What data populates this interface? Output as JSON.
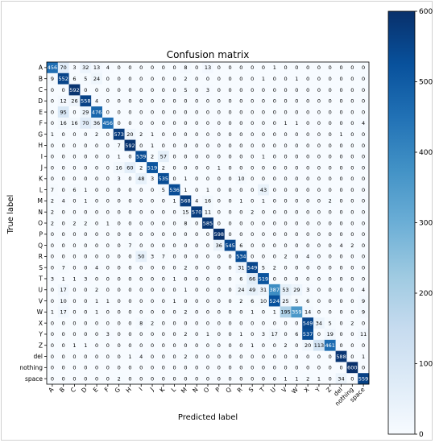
{
  "chart_data": {
    "type": "heatmap",
    "title": "Confusion matrix",
    "xlabel": "Predicted label",
    "ylabel": "True label",
    "labels": [
      "A",
      "B",
      "C",
      "D",
      "E",
      "F",
      "G",
      "H",
      "I",
      "J",
      "K",
      "L",
      "M",
      "N",
      "O",
      "P",
      "Q",
      "R",
      "S",
      "T",
      "U",
      "V",
      "W",
      "X",
      "Y",
      "Z",
      "del",
      "nothing",
      "space"
    ],
    "matrix": [
      [
        456,
        70,
        3,
        32,
        13,
        4,
        0,
        0,
        0,
        0,
        0,
        0,
        8,
        0,
        13,
        0,
        0,
        0,
        0,
        0,
        1,
        0,
        0,
        0,
        0,
        0,
        0,
        0,
        0
      ],
      [
        9,
        552,
        6,
        5,
        24,
        0,
        0,
        0,
        0,
        0,
        0,
        0,
        2,
        0,
        0,
        0,
        0,
        0,
        0,
        1,
        0,
        0,
        1,
        0,
        0,
        0,
        0,
        0,
        0
      ],
      [
        0,
        0,
        592,
        0,
        0,
        0,
        0,
        0,
        0,
        0,
        0,
        0,
        5,
        0,
        3,
        0,
        0,
        0,
        0,
        0,
        0,
        0,
        0,
        0,
        0,
        0,
        0,
        0,
        0
      ],
      [
        0,
        12,
        26,
        558,
        4,
        0,
        0,
        0,
        0,
        0,
        0,
        0,
        0,
        0,
        0,
        0,
        0,
        0,
        0,
        0,
        0,
        0,
        0,
        0,
        0,
        0,
        0,
        0,
        0
      ],
      [
        0,
        95,
        0,
        29,
        476,
        0,
        0,
        0,
        0,
        0,
        0,
        0,
        0,
        0,
        0,
        0,
        0,
        0,
        0,
        0,
        0,
        0,
        0,
        0,
        0,
        0,
        0,
        0,
        0
      ],
      [
        0,
        16,
        16,
        70,
        36,
        456,
        0,
        0,
        0,
        0,
        0,
        0,
        0,
        0,
        0,
        0,
        0,
        0,
        0,
        0,
        0,
        1,
        1,
        0,
        0,
        0,
        0,
        0,
        4
      ],
      [
        1,
        0,
        0,
        0,
        2,
        0,
        573,
        20,
        2,
        1,
        0,
        0,
        0,
        0,
        0,
        0,
        0,
        0,
        0,
        0,
        0,
        0,
        0,
        0,
        0,
        0,
        1,
        0,
        0
      ],
      [
        0,
        0,
        0,
        0,
        0,
        0,
        7,
        592,
        0,
        1,
        0,
        0,
        0,
        0,
        0,
        0,
        0,
        0,
        0,
        0,
        0,
        0,
        0,
        0,
        0,
        0,
        0,
        0,
        0
      ],
      [
        0,
        0,
        0,
        0,
        0,
        0,
        1,
        0,
        539,
        2,
        57,
        0,
        0,
        0,
        0,
        0,
        0,
        0,
        0,
        1,
        0,
        0,
        0,
        0,
        0,
        0,
        0,
        0,
        0
      ],
      [
        0,
        0,
        0,
        0,
        0,
        0,
        16,
        60,
        2,
        519,
        2,
        0,
        0,
        0,
        0,
        1,
        0,
        0,
        0,
        0,
        0,
        0,
        0,
        0,
        0,
        0,
        0,
        0,
        0
      ],
      [
        0,
        0,
        0,
        0,
        0,
        0,
        3,
        0,
        48,
        3,
        535,
        0,
        1,
        0,
        0,
        0,
        0,
        10,
        0,
        0,
        0,
        0,
        0,
        0,
        0,
        0,
        0,
        0,
        0
      ],
      [
        7,
        0,
        6,
        1,
        0,
        0,
        0,
        0,
        0,
        0,
        5,
        536,
        1,
        0,
        1,
        0,
        0,
        0,
        0,
        43,
        0,
        0,
        0,
        0,
        0,
        0,
        0,
        0,
        0
      ],
      [
        2,
        4,
        0,
        1,
        0,
        0,
        0,
        0,
        0,
        0,
        0,
        1,
        568,
        4,
        16,
        0,
        0,
        1,
        0,
        1,
        0,
        0,
        0,
        0,
        0,
        2,
        0,
        0,
        0
      ],
      [
        2,
        0,
        0,
        0,
        0,
        0,
        0,
        0,
        0,
        0,
        0,
        0,
        15,
        570,
        11,
        0,
        0,
        0,
        2,
        0,
        0,
        0,
        0,
        0,
        0,
        0,
        0,
        0,
        0
      ],
      [
        2,
        0,
        2,
        2,
        0,
        1,
        0,
        0,
        0,
        0,
        0,
        0,
        8,
        0,
        585,
        0,
        0,
        0,
        0,
        0,
        0,
        0,
        0,
        0,
        0,
        0,
        0,
        0,
        0
      ],
      [
        0,
        0,
        0,
        0,
        0,
        0,
        0,
        0,
        0,
        0,
        0,
        0,
        0,
        0,
        0,
        598,
        0,
        0,
        0,
        0,
        0,
        0,
        0,
        0,
        0,
        0,
        0,
        0,
        0
      ],
      [
        0,
        0,
        0,
        0,
        0,
        0,
        0,
        7,
        0,
        0,
        0,
        0,
        0,
        0,
        0,
        36,
        545,
        6,
        0,
        0,
        0,
        0,
        0,
        0,
        0,
        0,
        4,
        2,
        0
      ],
      [
        0,
        0,
        0,
        0,
        0,
        0,
        0,
        0,
        50,
        3,
        7,
        0,
        0,
        0,
        0,
        0,
        0,
        534,
        0,
        0,
        0,
        2,
        0,
        4,
        0,
        0,
        0,
        0,
        0
      ],
      [
        0,
        7,
        0,
        0,
        4,
        0,
        0,
        0,
        0,
        0,
        0,
        0,
        2,
        0,
        0,
        0,
        0,
        31,
        549,
        5,
        2,
        0,
        0,
        0,
        0,
        0,
        0,
        0,
        0
      ],
      [
        3,
        1,
        1,
        3,
        0,
        0,
        0,
        0,
        0,
        0,
        0,
        1,
        0,
        0,
        0,
        0,
        0,
        6,
        66,
        519,
        0,
        0,
        0,
        0,
        0,
        0,
        0,
        0,
        0
      ],
      [
        0,
        17,
        0,
        0,
        2,
        0,
        0,
        0,
        0,
        0,
        0,
        0,
        1,
        0,
        0,
        0,
        0,
        24,
        49,
        31,
        387,
        53,
        29,
        3,
        0,
        0,
        0,
        0,
        4
      ],
      [
        0,
        10,
        0,
        0,
        1,
        1,
        0,
        0,
        0,
        0,
        0,
        1,
        0,
        0,
        0,
        0,
        0,
        2,
        6,
        10,
        524,
        25,
        5,
        6,
        0,
        0,
        0,
        0,
        9
      ],
      [
        1,
        17,
        0,
        0,
        1,
        0,
        0,
        0,
        0,
        0,
        0,
        0,
        2,
        0,
        0,
        0,
        0,
        0,
        1,
        0,
        1,
        195,
        359,
        14,
        0,
        0,
        0,
        0,
        9
      ],
      [
        0,
        0,
        0,
        0,
        0,
        0,
        0,
        0,
        8,
        2,
        0,
        0,
        0,
        0,
        0,
        0,
        0,
        0,
        0,
        0,
        0,
        0,
        0,
        549,
        34,
        5,
        0,
        2,
        0
      ],
      [
        0,
        0,
        0,
        0,
        0,
        3,
        0,
        0,
        0,
        0,
        0,
        0,
        2,
        0,
        1,
        0,
        0,
        1,
        0,
        3,
        17,
        0,
        6,
        537,
        0,
        19,
        0,
        0,
        11
      ],
      [
        0,
        0,
        1,
        1,
        0,
        0,
        0,
        0,
        0,
        0,
        0,
        0,
        0,
        0,
        0,
        0,
        0,
        0,
        1,
        0,
        0,
        2,
        0,
        20,
        113,
        461,
        0,
        0,
        0
      ],
      [
        0,
        0,
        0,
        0,
        0,
        0,
        0,
        1,
        4,
        0,
        0,
        0,
        2,
        0,
        0,
        0,
        0,
        0,
        0,
        0,
        0,
        0,
        0,
        0,
        0,
        0,
        588,
        0,
        1
      ],
      [
        0,
        0,
        0,
        0,
        0,
        0,
        0,
        0,
        0,
        0,
        0,
        0,
        0,
        0,
        0,
        0,
        0,
        0,
        0,
        0,
        0,
        0,
        0,
        0,
        0,
        0,
        0,
        600,
        0
      ],
      [
        0,
        0,
        0,
        0,
        0,
        0,
        2,
        0,
        0,
        0,
        0,
        0,
        0,
        0,
        0,
        0,
        0,
        0,
        0,
        0,
        0,
        1,
        1,
        2,
        1,
        0,
        34,
        0,
        559
      ]
    ],
    "colorbar": {
      "min": 0,
      "max": 600,
      "ticks": [
        0,
        100,
        200,
        300,
        400,
        500,
        600
      ]
    },
    "colormap": "Blues",
    "colors": {
      "low": "#f7fbff",
      "high": "#08306b",
      "text_light": "#ffffff",
      "text_dark": "#000000"
    },
    "grid": false
  }
}
